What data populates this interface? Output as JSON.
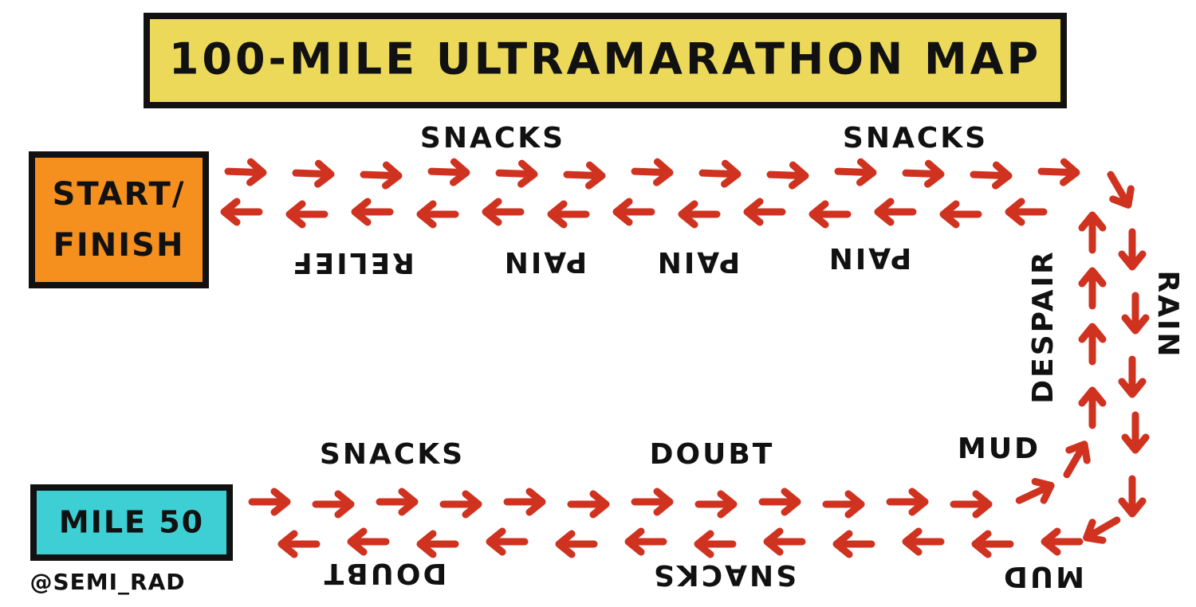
{
  "title": "100-MILE ULTRAMARATHON MAP",
  "start_finish": [
    "START/",
    "FINISH"
  ],
  "mile_50": "MILE 50",
  "credit": "@SEMI_RAD",
  "route_labels": [
    "SNACKS",
    "SNACKS",
    "RAIN",
    "MUD",
    "SNACKS",
    "DOUBT",
    "MUD",
    "DESPAIR",
    "PAIN",
    "PAIN",
    "PAIN",
    "RELIEF",
    "DOUBT",
    "SNACKS",
    "MUD"
  ]
}
